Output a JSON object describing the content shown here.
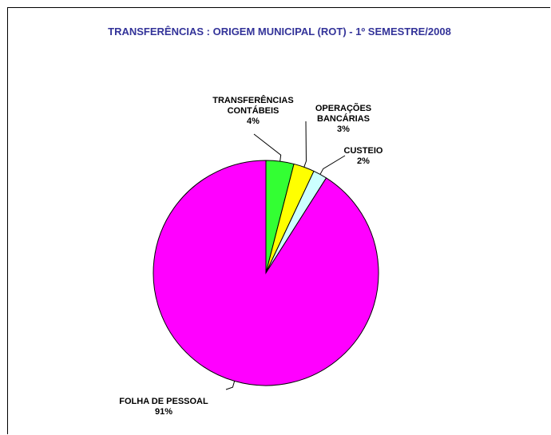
{
  "chart_data": {
    "type": "pie",
    "title": "TRANSFERÊNCIAS : ORIGEM MUNICIPAL (ROT) - 1º SEMESTRE/2008",
    "categories": [
      "TRANSFERÊNCIAS CONTÁBEIS",
      "OPERAÇÕES BANCÁRIAS",
      "CUSTEIO",
      "FOLHA DE PESSOAL"
    ],
    "values": [
      4,
      3,
      2,
      91
    ],
    "value_labels": [
      "4%",
      "3%",
      "2%",
      "91%"
    ],
    "colors": [
      "#33ff33",
      "#ffff00",
      "#ccffff",
      "#ff00ff"
    ]
  }
}
